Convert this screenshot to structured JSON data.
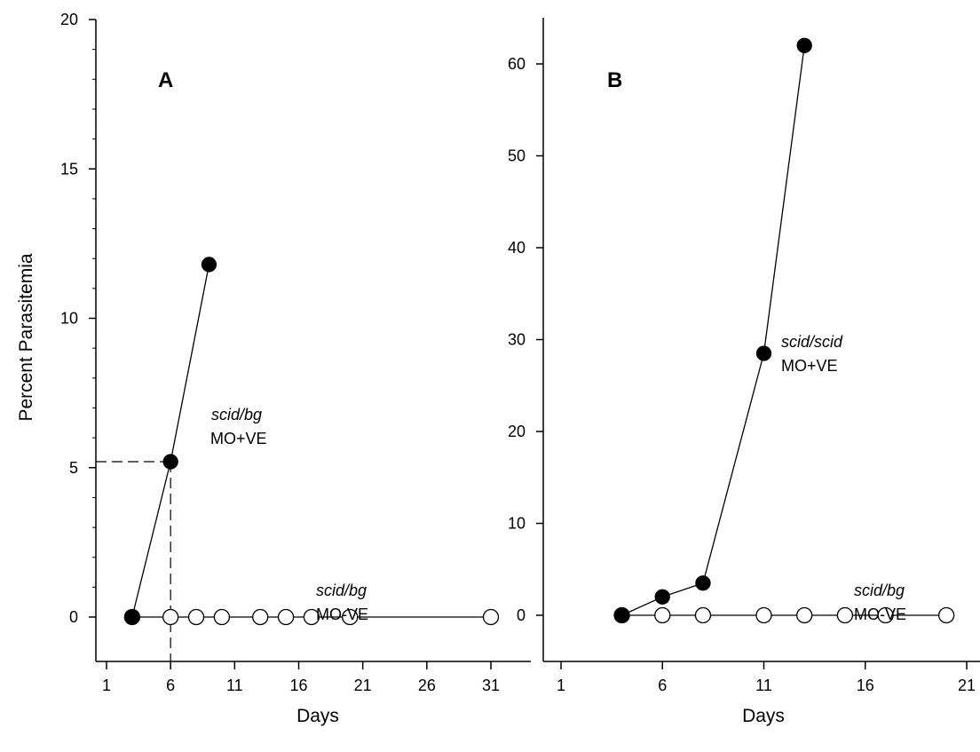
{
  "chart_data": [
    {
      "type": "line",
      "panel_label": "A",
      "xlabel": "Days",
      "ylabel": "Percent Parasitemia",
      "xticks": [
        1,
        6,
        11,
        16,
        21,
        26,
        31
      ],
      "yticks": [
        0,
        5,
        10,
        15,
        20
      ],
      "xlim": [
        0,
        33
      ],
      "ylim": [
        -1.5,
        20
      ],
      "series": [
        {
          "marker": "filled-circle",
          "annotation_strain": "scid/bg",
          "annotation_group": "MO+VE",
          "x": [
            3,
            6,
            9
          ],
          "y": [
            0,
            5.2,
            11.8
          ]
        },
        {
          "marker": "open-circle",
          "annotation_strain": "scid/bg",
          "annotation_group": "MO-VE",
          "x": [
            3,
            6,
            8,
            10,
            13,
            15,
            17,
            20,
            31
          ],
          "y": [
            0,
            0,
            0,
            0,
            0,
            0,
            0,
            0,
            0
          ]
        }
      ],
      "reference_lines": [
        {
          "style": "dashed",
          "x": 6,
          "y": 5.2
        }
      ]
    },
    {
      "type": "line",
      "panel_label": "B",
      "xlabel": "Days",
      "ylabel": "",
      "xticks": [
        1,
        6,
        11,
        16,
        21
      ],
      "yticks": [
        0,
        10,
        20,
        30,
        40,
        50,
        60
      ],
      "xlim": [
        -0.5,
        22
      ],
      "ylim": [
        -5,
        66
      ],
      "series": [
        {
          "marker": "filled-circle",
          "annotation_strain": "scid/scid",
          "annotation_group": "MO+VE",
          "x": [
            4,
            6,
            8,
            11,
            13
          ],
          "y": [
            0,
            2,
            3.5,
            28.5,
            62
          ]
        },
        {
          "marker": "open-circle",
          "annotation_strain": "scid/bg",
          "annotation_group": "MO-VE",
          "x": [
            4,
            6,
            8,
            11,
            13,
            15,
            17,
            20
          ],
          "y": [
            0,
            0,
            0,
            0,
            0,
            0,
            0,
            0
          ]
        }
      ]
    }
  ],
  "colors": {
    "ink": "#000000",
    "paper": "#ffffff"
  }
}
